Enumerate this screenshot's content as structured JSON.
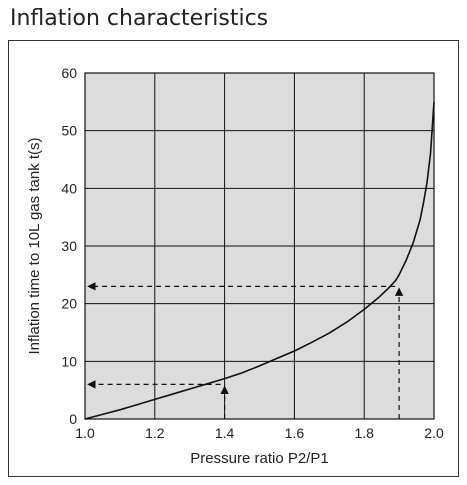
{
  "page": {
    "title": "Inflation characteristics"
  },
  "chart_data": {
    "type": "line",
    "title": "",
    "xlabel": "Pressure ratio P2/P1",
    "ylabel": "Inflation time to 10L gas tank t(s)",
    "xlim": [
      1.0,
      2.0
    ],
    "ylim": [
      0,
      60
    ],
    "xticks": [
      "1.0",
      "1.2",
      "1.4",
      "1.6",
      "1.8",
      "2.0"
    ],
    "yticks": [
      "0",
      "10",
      "20",
      "30",
      "40",
      "50",
      "60"
    ],
    "grid": true,
    "background_color": "#dcdcdc",
    "line_color": "#111111",
    "series": [
      {
        "x": [
          1.0,
          1.05,
          1.1,
          1.15,
          1.2,
          1.25,
          1.3,
          1.35,
          1.4,
          1.45,
          1.5,
          1.55,
          1.6,
          1.65,
          1.7,
          1.75,
          1.8,
          1.84,
          1.87,
          1.89,
          1.9,
          1.92,
          1.94,
          1.96,
          1.97,
          1.98,
          1.99,
          2.0
        ],
        "y": [
          0,
          0.8,
          1.6,
          2.5,
          3.4,
          4.3,
          5.2,
          6.1,
          7.0,
          8.0,
          9.2,
          10.5,
          11.8,
          13.3,
          14.9,
          16.8,
          19.0,
          21.0,
          22.7,
          24.0,
          25.0,
          27.5,
          30.5,
          34.5,
          37.5,
          41.0,
          46.0,
          55.0
        ]
      }
    ],
    "annotations": [
      {
        "x": 1.4,
        "y": 6
      },
      {
        "x": 1.9,
        "y": 23
      }
    ]
  }
}
